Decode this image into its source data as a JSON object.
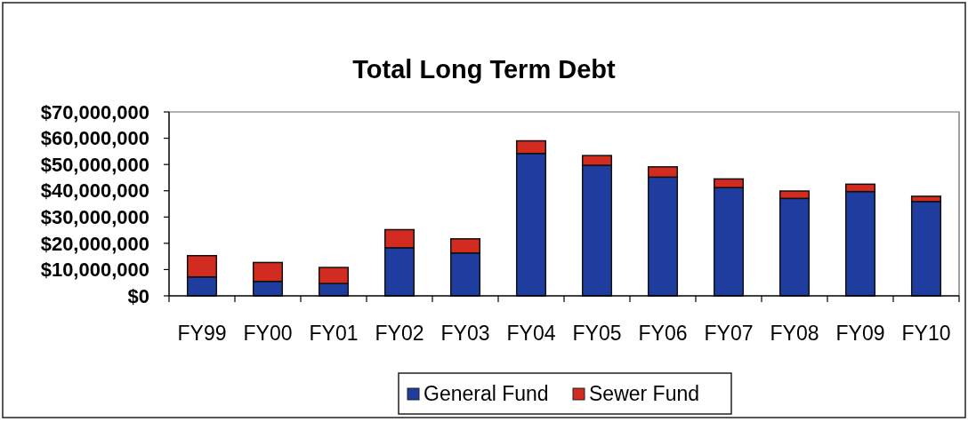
{
  "chart_data": {
    "type": "bar",
    "title": "Total Long Term Debt",
    "stacked": true,
    "legend": "bottom",
    "categories": [
      "FY99",
      "FY00",
      "FY01",
      "FY02",
      "FY03",
      "FY04",
      "FY05",
      "FY06",
      "FY07",
      "FY08",
      "FY09",
      "FY10"
    ],
    "series": [
      {
        "name": "General Fund",
        "color": "#1f3d9e",
        "values": [
          7200000,
          5500000,
          4700000,
          18300000,
          16300000,
          54200000,
          49700000,
          45200000,
          41200000,
          37100000,
          39700000,
          35900000
        ]
      },
      {
        "name": "Sewer Fund",
        "color": "#d22b1f",
        "values": [
          8100000,
          7200000,
          6100000,
          6900000,
          5400000,
          4800000,
          3700000,
          3900000,
          3300000,
          2800000,
          2800000,
          2000000
        ]
      }
    ],
    "ylim": [
      0,
      70000000
    ],
    "yticks": [
      {
        "value": 0,
        "label": "$0"
      },
      {
        "value": 10000000,
        "label": "$10,000,000"
      },
      {
        "value": 20000000,
        "label": "$20,000,000"
      },
      {
        "value": 30000000,
        "label": "$30,000,000"
      },
      {
        "value": 40000000,
        "label": "$40,000,000"
      },
      {
        "value": 50000000,
        "label": "$50,000,000"
      },
      {
        "value": 60000000,
        "label": "$60,000,000"
      },
      {
        "value": 70000000,
        "label": "$70,000,000"
      }
    ]
  }
}
